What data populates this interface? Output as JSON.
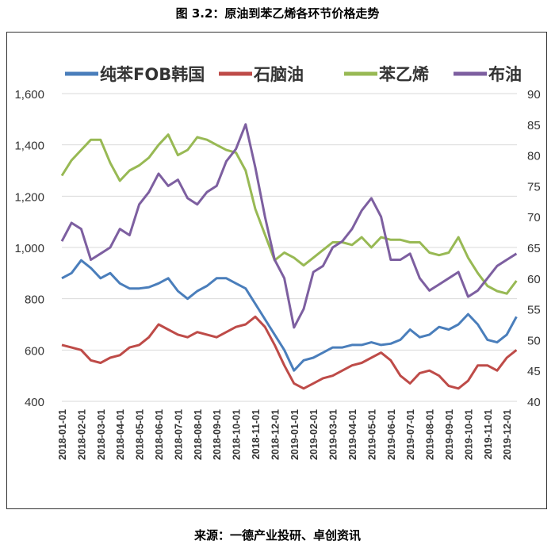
{
  "title": "图 3.2：原油到苯乙烯各环节价格走势",
  "source": "来源：一德产业投研、卓创资讯",
  "chart_data": {
    "type": "line",
    "title": "图 3.2：原油到苯乙烯各环节价格走势",
    "x_step_months": 0.5,
    "x_labels": [
      "2018-01-01",
      "2018-02-01",
      "2018-03-01",
      "2018-04-01",
      "2018-05-01",
      "2018-06-01",
      "2018-07-01",
      "2018-08-01",
      "2018-09-01",
      "2018-10-01",
      "2018-11-01",
      "2018-12-01",
      "2019-01-01",
      "2019-02-01",
      "2019-03-01",
      "2019-04-01",
      "2019-05-01",
      "2019-06-01",
      "2019-07-01",
      "2019-08-01",
      "2019-09-01",
      "2019-10-01",
      "2019-11-01",
      "2019-12-01"
    ],
    "left_axis": {
      "min": 400,
      "max": 1600,
      "ticks": [
        "400",
        "600",
        "800",
        "1,000",
        "1,200",
        "1,400",
        "1,600"
      ]
    },
    "right_axis": {
      "min": 40,
      "max": 90,
      "ticks": [
        "40",
        "45",
        "50",
        "55",
        "60",
        "65",
        "70",
        "75",
        "80",
        "85",
        "90"
      ]
    },
    "grid": true,
    "legend_position": "top",
    "series": [
      {
        "name": "纯苯FOB韩国",
        "axis": "left",
        "color": "#4a7ebb",
        "values": [
          880,
          900,
          950,
          920,
          880,
          900,
          860,
          840,
          840,
          845,
          860,
          880,
          830,
          800,
          830,
          850,
          880,
          880,
          860,
          840,
          780,
          720,
          660,
          600,
          520,
          560,
          570,
          590,
          610,
          610,
          620,
          620,
          630,
          620,
          625,
          640,
          680,
          650,
          660,
          690,
          680,
          700,
          740,
          700,
          640,
          630,
          660,
          730
        ]
      },
      {
        "name": "石脑油",
        "axis": "left",
        "color": "#be4b48",
        "values": [
          620,
          610,
          600,
          560,
          550,
          570,
          580,
          610,
          620,
          650,
          700,
          680,
          660,
          650,
          670,
          660,
          650,
          670,
          690,
          700,
          730,
          690,
          620,
          540,
          470,
          450,
          470,
          490,
          500,
          520,
          540,
          550,
          570,
          590,
          560,
          500,
          470,
          510,
          520,
          500,
          460,
          450,
          480,
          540,
          540,
          520,
          570,
          600
        ]
      },
      {
        "name": "苯乙烯",
        "axis": "left",
        "color": "#98b954",
        "values": [
          1280,
          1340,
          1380,
          1420,
          1420,
          1330,
          1260,
          1300,
          1320,
          1350,
          1400,
          1440,
          1360,
          1380,
          1430,
          1420,
          1400,
          1380,
          1370,
          1300,
          1150,
          1050,
          950,
          980,
          960,
          930,
          960,
          990,
          1020,
          1020,
          1010,
          1040,
          1000,
          1040,
          1030,
          1030,
          1020,
          1020,
          980,
          970,
          980,
          1040,
          960,
          900,
          850,
          830,
          820,
          870
        ]
      },
      {
        "name": "布油",
        "axis": "right",
        "color": "#7d5fa0",
        "values": [
          66,
          69,
          68,
          63,
          64,
          65,
          68,
          67,
          72,
          74,
          77,
          75,
          76,
          73,
          72,
          74,
          75,
          79,
          81,
          85,
          78,
          70,
          63,
          60,
          52,
          55,
          61,
          62,
          65,
          66,
          68,
          71,
          73,
          70,
          63,
          63,
          64,
          60,
          58,
          59,
          60,
          61,
          57,
          58,
          60,
          62,
          63,
          64
        ]
      }
    ]
  }
}
